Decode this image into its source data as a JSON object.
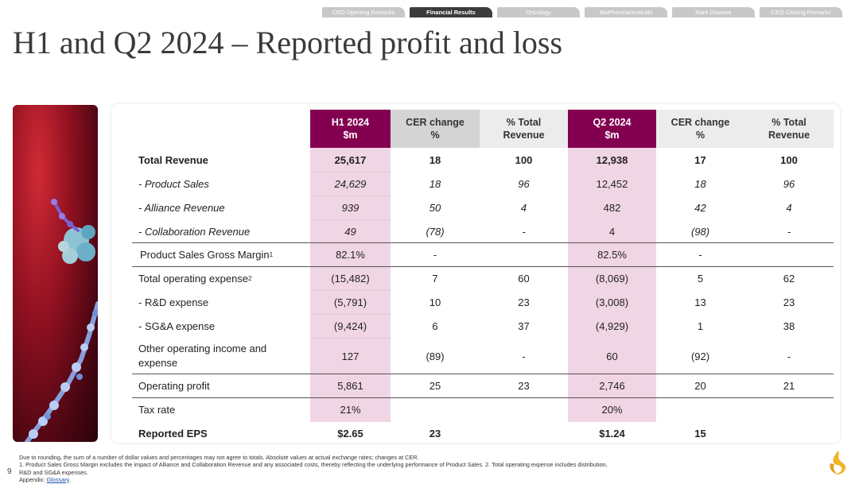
{
  "nav": {
    "tabs": [
      {
        "label": "CEO Opening Remarks",
        "active": false
      },
      {
        "label": "Financial Results",
        "active": true
      },
      {
        "label": "Oncology",
        "active": false
      },
      {
        "label": "BioPharmaceuticals",
        "active": false
      },
      {
        "label": "Rare Disease",
        "active": false
      },
      {
        "label": "CEO Closing Remarks",
        "active": false
      }
    ]
  },
  "title": "H1 and Q2 2024 – Reported profit and loss",
  "table": {
    "headers": {
      "h1_l1": "H1 2024",
      "h1_l2": "$m",
      "cer1_l1": "CER change",
      "cer1_l2": "%",
      "pct1_l1": "% Total",
      "pct1_l2": "Revenue",
      "q2_l1": "Q2 2024",
      "q2_l2": "$m",
      "cer2_l1": "CER change",
      "cer2_l2": "%",
      "pct2_l1": "% Total",
      "pct2_l2": "Revenue"
    },
    "rows": [
      {
        "label": "Total Revenue",
        "h1": "25,617",
        "cer1": "18",
        "pct1": "100",
        "q2": "12,938",
        "cer2": "17",
        "pct2": "100"
      },
      {
        "label": "- Product Sales",
        "h1": "24,629",
        "cer1": "18",
        "pct1": "96",
        "q2": "12,452",
        "cer2": "18",
        "pct2": "96"
      },
      {
        "label": "- Alliance Revenue",
        "h1": "939",
        "cer1": "50",
        "pct1": "4",
        "q2": "482",
        "cer2": "42",
        "pct2": "4"
      },
      {
        "label": "- Collaboration Revenue",
        "h1": "49",
        "cer1": "(78)",
        "pct1": "-",
        "q2": "4",
        "cer2": "(98)",
        "pct2": "-"
      },
      {
        "label": "Product Sales Gross Margin",
        "sup": "1",
        "h1": "82.1%",
        "cer1": "-",
        "pct1": "",
        "q2": "82.5%",
        "cer2": "-",
        "pct2": ""
      },
      {
        "label": "Total operating expense",
        "sup": "2",
        "h1": "(15,482)",
        "cer1": "7",
        "pct1": "60",
        "q2": "(8,069)",
        "cer2": "5",
        "pct2": "62"
      },
      {
        "label": "- R&D expense",
        "h1": "(5,791)",
        "cer1": "10",
        "pct1": "23",
        "q2": "(3,008)",
        "cer2": "13",
        "pct2": "23"
      },
      {
        "label": "- SG&A expense",
        "h1": "(9,424)",
        "cer1": "6",
        "pct1": "37",
        "q2": "(4,929)",
        "cer2": "1",
        "pct2": "38"
      },
      {
        "label_l1": "Other operating income and",
        "label_l2": "expense",
        "h1": "127",
        "cer1": "(89)",
        "pct1": "-",
        "q2": "60",
        "cer2": "(92)",
        "pct2": "-"
      },
      {
        "label": "Operating profit",
        "h1": "5,861",
        "cer1": "25",
        "pct1": "23",
        "q2": "2,746",
        "cer2": "20",
        "pct2": "21"
      },
      {
        "label": "Tax rate",
        "h1": "21%",
        "cer1": "",
        "pct1": "",
        "q2": "20%",
        "cer2": "",
        "pct2": ""
      },
      {
        "label": "Reported EPS",
        "h1": "$2.65",
        "cer1": "23",
        "pct1": "",
        "q2": "$1.24",
        "cer2": "15",
        "pct2": ""
      }
    ]
  },
  "footnotes": {
    "line1": "Due to rounding, the sum of a number of dollar values and percentages may not agree to totals. Absolute values at actual exchange rates; changes at CER.",
    "line2": "1. Product Sales Gross Margin excludes the impact of Alliance and Collaboration Revenue and any associated costs, thereby reflecting the underlying performance of Product Sales. 2. Total operating expense includes distribution,",
    "line3": "R&D and SG&A expenses.",
    "appendix_label": "Appendix:",
    "appendix_link": "Glossary",
    "appendix_end": "."
  },
  "page_number": "9",
  "colors": {
    "accent": "#830051",
    "band": "#f0d5e4",
    "header_grey": "#d4d4d4"
  },
  "icons": {
    "logo": "astrazeneca-logo-icon"
  }
}
